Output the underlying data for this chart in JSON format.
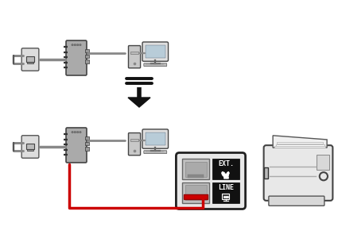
{
  "bg_color": "#ffffff",
  "arrow_color": "#111111",
  "red_color": "#cc0000",
  "gray_dark": "#555555",
  "gray_mid": "#888888",
  "gray_light": "#cccccc",
  "black": "#111111",
  "white": "#ffffff",
  "ext_label": "EXT.",
  "line_label": "LINE",
  "panel_fill": "#e8e8e8",
  "panel_edge": "#222222",
  "black_box": "#111111",
  "modem_fill": "#aaaaaa",
  "modem_edge": "#444444",
  "wall_fill": "#dddddd",
  "wall_edge": "#555555",
  "screen_fill": "#b8ccd8",
  "monitor_fill": "#e0e0e0",
  "tower_fill": "#c8c8c8",
  "printer_fill": "#e8e8e8",
  "printer_edge": "#444444"
}
